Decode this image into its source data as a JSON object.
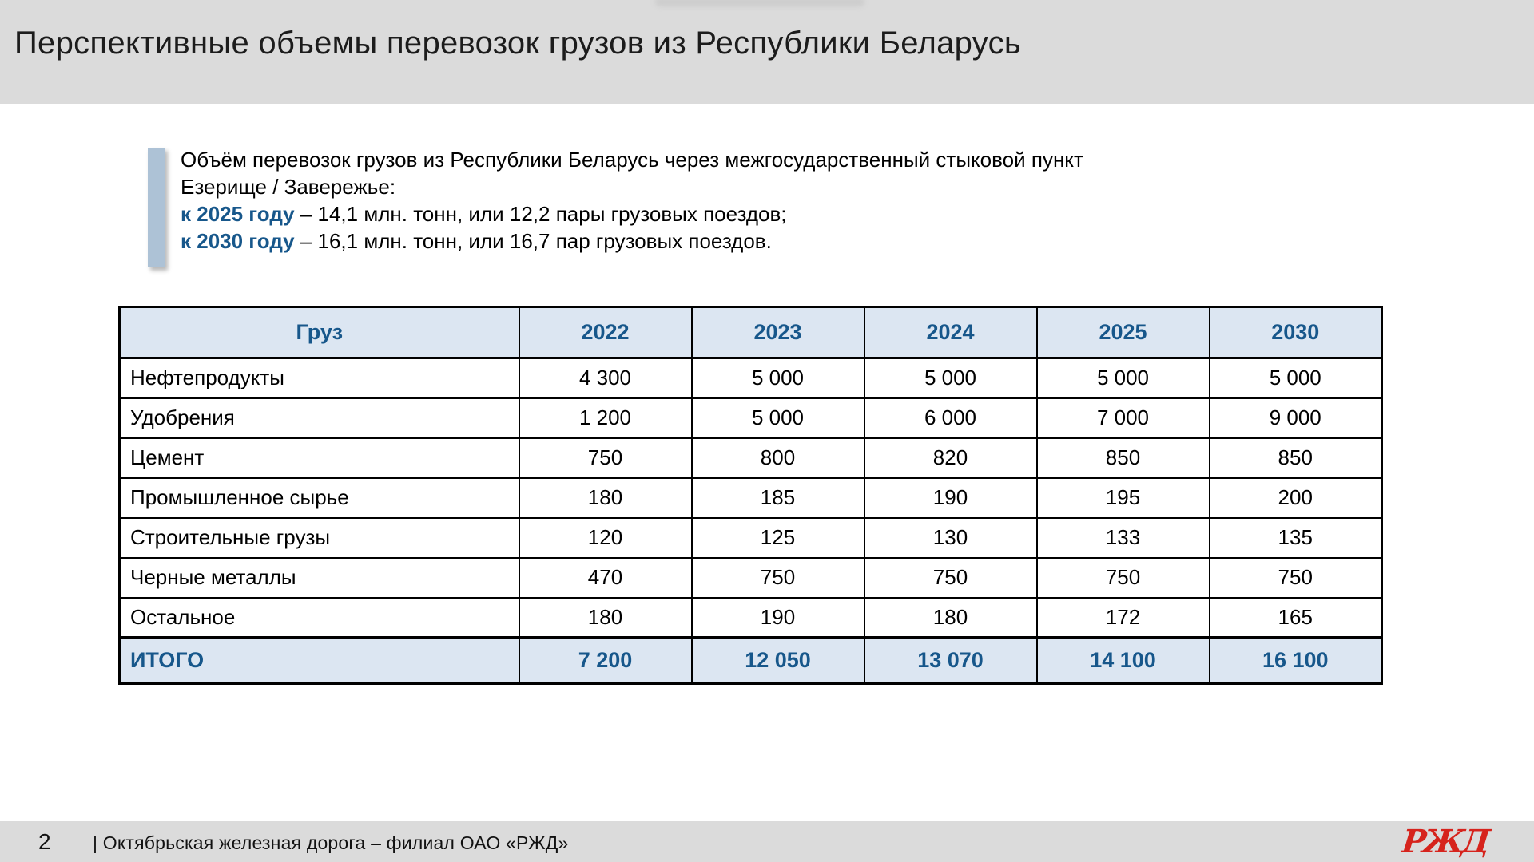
{
  "slide": {
    "title": "Перспективные объемы перевозок грузов из Республики Беларусь"
  },
  "callout": {
    "intro_line1": "Объём перевозок грузов из Республики Беларусь через межгосударственный стыковой пункт",
    "intro_line2": "Езерище / Завережье:",
    "item1": {
      "bold": "к 2025 году",
      "rest": " – 14,1 млн. тонн, или 12,2 пары грузовых поездов;"
    },
    "item2": {
      "bold": "к 2030 году",
      "rest": " – 16,1 млн. тонн, или 16,7 пар грузовых поездов."
    }
  },
  "table": {
    "headers": [
      "Груз",
      "2022",
      "2023",
      "2024",
      "2025",
      "2030"
    ],
    "rows": [
      [
        "Нефтепродукты",
        "4 300",
        "5 000",
        "5 000",
        "5 000",
        "5 000"
      ],
      [
        "Удобрения",
        "1 200",
        "5 000",
        "6 000",
        "7 000",
        "9 000"
      ],
      [
        "Цемент",
        "750",
        "800",
        "820",
        "850",
        "850"
      ],
      [
        "Промышленное сырье",
        "180",
        "185",
        "190",
        "195",
        "200"
      ],
      [
        "Строительные грузы",
        "120",
        "125",
        "130",
        "133",
        "135"
      ],
      [
        "Черные металлы",
        "470",
        "750",
        "750",
        "750",
        "750"
      ],
      [
        "Остальное",
        "180",
        "190",
        "180",
        "172",
        "165"
      ]
    ],
    "total_row": [
      "ИТОГО",
      "7 200",
      "12 050",
      "13 070",
      "14 100",
      "16 100"
    ]
  },
  "footer": {
    "page_number": "2",
    "text": "| Октябрьская железная дорога – филиал ОАО «РЖД»",
    "logo_text": "РЖД"
  },
  "colors": {
    "band_gray": "#dbdbdb",
    "accent_blue": "#17578b",
    "table_header_bg": "#dce6f2",
    "accent_bar": "#adc2d6",
    "logo_red": "#d6231c"
  }
}
